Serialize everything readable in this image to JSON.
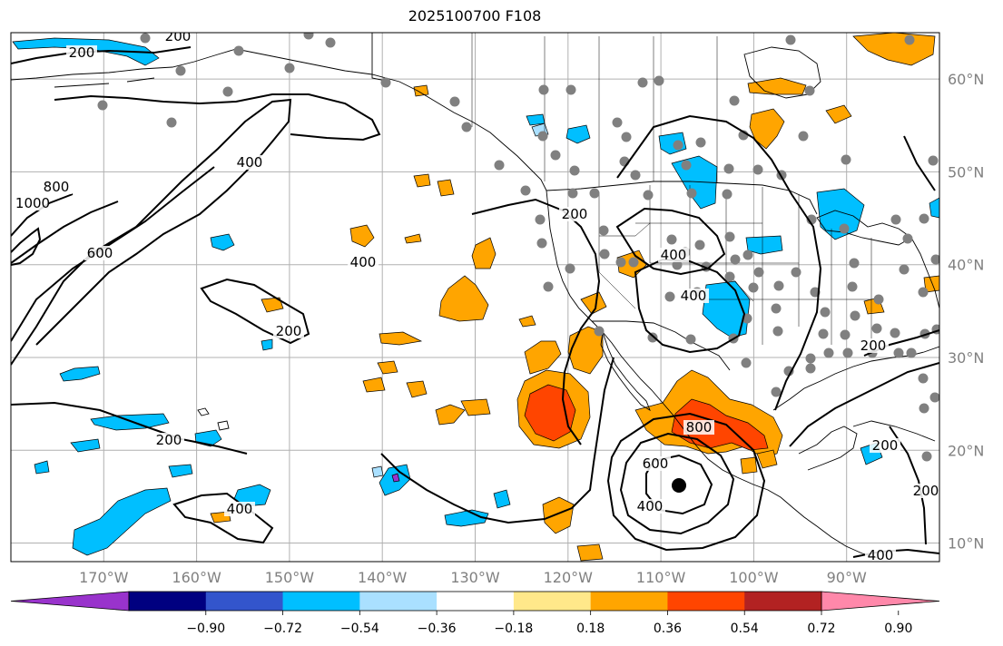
{
  "title": "2025100700 F108",
  "map": {
    "projection": "PlateCarree",
    "lon_range": [
      -180,
      -80
    ],
    "lat_range": [
      8,
      65
    ],
    "longitude_labels": [
      "170°W",
      "160°W",
      "150°W",
      "140°W",
      "130°W",
      "120°W",
      "110°W",
      "100°W",
      "90°W"
    ],
    "latitude_labels": [
      "60°N",
      "50°N",
      "40°N",
      "30°N",
      "20°N",
      "10°N"
    ],
    "land_color": "#ffffff",
    "grid_color": "#b0b0b0",
    "coast_color": "#000000"
  },
  "contours": {
    "labels": [
      "200",
      "200",
      "400",
      "600",
      "800",
      "1000",
      "200",
      "200",
      "400",
      "200",
      "400",
      "400",
      "400",
      "800",
      "600",
      "400",
      "200",
      "200",
      "200",
      "400"
    ]
  },
  "stations": {
    "color": "#808080"
  },
  "colorbar": {
    "colors": [
      "#9933cc",
      "#000080",
      "#3355cc",
      "#00bfff",
      "#aae0ff",
      "#ffffff",
      "#ffe88a",
      "#ffa500",
      "#ff4500",
      "#b22222",
      "#ff88aa"
    ],
    "tick_labels": [
      "−0.90",
      "−0.72",
      "−0.54",
      "−0.36",
      "−0.18",
      "0.18",
      "0.36",
      "0.54",
      "0.72",
      "0.90"
    ],
    "extend": "both"
  },
  "field_colors": {
    "light_blue": "#00bfff",
    "orange": "#ffa500",
    "red_orange": "#ff4500",
    "pale_blue": "#aae0ff",
    "purple": "#9933cc"
  },
  "low_center_marker": "hurricane-center"
}
